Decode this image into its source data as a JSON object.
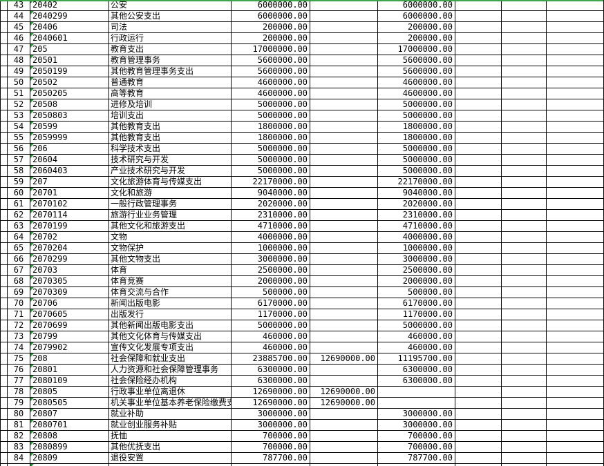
{
  "colors": {
    "gridline": "#000000",
    "background": "#ffffff",
    "text": "#000000",
    "selection_green": "#3da64a",
    "error_indicator_green": "#2f8f3c"
  },
  "table": {
    "rows": [
      {
        "num": "43",
        "code": "20402",
        "desc": "公安",
        "a1": "6000000.00",
        "a2": "",
        "a3": "6000000.00"
      },
      {
        "num": "44",
        "code": "2040299",
        "desc": "其他公安支出",
        "a1": "6000000.00",
        "a2": "",
        "a3": "6000000.00"
      },
      {
        "num": "45",
        "code": "20406",
        "desc": "司法",
        "a1": "200000.00",
        "a2": "",
        "a3": "200000.00"
      },
      {
        "num": "46",
        "code": "2040601",
        "desc": "行政运行",
        "a1": "200000.00",
        "a2": "",
        "a3": "200000.00"
      },
      {
        "num": "47",
        "code": "205",
        "desc": "教育支出",
        "a1": "17000000.00",
        "a2": "",
        "a3": "17000000.00"
      },
      {
        "num": "48",
        "code": "20501",
        "desc": "教育管理事务",
        "a1": "5600000.00",
        "a2": "",
        "a3": "5600000.00"
      },
      {
        "num": "49",
        "code": "2050199",
        "desc": "其他教育管理事务支出",
        "a1": "5600000.00",
        "a2": "",
        "a3": "5600000.00"
      },
      {
        "num": "50",
        "code": "20502",
        "desc": "普通教育",
        "a1": "4600000.00",
        "a2": "",
        "a3": "4600000.00"
      },
      {
        "num": "51",
        "code": "2050205",
        "desc": "高等教育",
        "a1": "4600000.00",
        "a2": "",
        "a3": "4600000.00"
      },
      {
        "num": "52",
        "code": "20508",
        "desc": "进修及培训",
        "a1": "5000000.00",
        "a2": "",
        "a3": "5000000.00"
      },
      {
        "num": "53",
        "code": "2050803",
        "desc": "培训支出",
        "a1": "5000000.00",
        "a2": "",
        "a3": "5000000.00"
      },
      {
        "num": "54",
        "code": "20599",
        "desc": "其他教育支出",
        "a1": "1800000.00",
        "a2": "",
        "a3": "1800000.00"
      },
      {
        "num": "55",
        "code": "2059999",
        "desc": "其他教育支出",
        "a1": "1800000.00",
        "a2": "",
        "a3": "1800000.00"
      },
      {
        "num": "56",
        "code": "206",
        "desc": "科学技术支出",
        "a1": "5000000.00",
        "a2": "",
        "a3": "5000000.00"
      },
      {
        "num": "57",
        "code": "20604",
        "desc": "技术研究与开发",
        "a1": "5000000.00",
        "a2": "",
        "a3": "5000000.00"
      },
      {
        "num": "58",
        "code": "2060403",
        "desc": "产业技术研究与开发",
        "a1": "5000000.00",
        "a2": "",
        "a3": "5000000.00"
      },
      {
        "num": "59",
        "code": "207",
        "desc": "文化旅游体育与传媒支出",
        "a1": "22170000.00",
        "a2": "",
        "a3": "22170000.00"
      },
      {
        "num": "60",
        "code": "20701",
        "desc": "文化和旅游",
        "a1": "9040000.00",
        "a2": "",
        "a3": "9040000.00"
      },
      {
        "num": "61",
        "code": "2070102",
        "desc": "一般行政管理事务",
        "a1": "2020000.00",
        "a2": "",
        "a3": "2020000.00"
      },
      {
        "num": "62",
        "code": "2070114",
        "desc": "旅游行业业务管理",
        "a1": "2310000.00",
        "a2": "",
        "a3": "2310000.00"
      },
      {
        "num": "63",
        "code": "2070199",
        "desc": "其他文化和旅游支出",
        "a1": "4710000.00",
        "a2": "",
        "a3": "4710000.00"
      },
      {
        "num": "64",
        "code": "20702",
        "desc": "文物",
        "a1": "4000000.00",
        "a2": "",
        "a3": "4000000.00"
      },
      {
        "num": "65",
        "code": "2070204",
        "desc": "文物保护",
        "a1": "1000000.00",
        "a2": "",
        "a3": "1000000.00"
      },
      {
        "num": "66",
        "code": "2070299",
        "desc": "其他文物支出",
        "a1": "3000000.00",
        "a2": "",
        "a3": "3000000.00"
      },
      {
        "num": "67",
        "code": "20703",
        "desc": "体育",
        "a1": "2500000.00",
        "a2": "",
        "a3": "2500000.00"
      },
      {
        "num": "68",
        "code": "2070305",
        "desc": "体育竞赛",
        "a1": "2000000.00",
        "a2": "",
        "a3": "2000000.00"
      },
      {
        "num": "69",
        "code": "2070309",
        "desc": "体育交流与合作",
        "a1": "500000.00",
        "a2": "",
        "a3": "500000.00"
      },
      {
        "num": "70",
        "code": "20706",
        "desc": "新闻出版电影",
        "a1": "6170000.00",
        "a2": "",
        "a3": "6170000.00"
      },
      {
        "num": "71",
        "code": "2070605",
        "desc": "出版发行",
        "a1": "1170000.00",
        "a2": "",
        "a3": "1170000.00"
      },
      {
        "num": "72",
        "code": "2070699",
        "desc": "其他新闻出版电影支出",
        "a1": "5000000.00",
        "a2": "",
        "a3": "5000000.00"
      },
      {
        "num": "73",
        "code": "20799",
        "desc": "其他文化体育与传媒支出",
        "a1": "460000.00",
        "a2": "",
        "a3": "460000.00"
      },
      {
        "num": "74",
        "code": "2079902",
        "desc": "宣传文化发展专项支出",
        "a1": "460000.00",
        "a2": "",
        "a3": "460000.00"
      },
      {
        "num": "75",
        "code": "208",
        "desc": "社会保障和就业支出",
        "a1": "23885700.00",
        "a2": "12690000.00",
        "a3": "11195700.00"
      },
      {
        "num": "76",
        "code": "20801",
        "desc": "人力资源和社会保障管理事务",
        "a1": "6300000.00",
        "a2": "",
        "a3": "6300000.00"
      },
      {
        "num": "77",
        "code": "2080109",
        "desc": "社会保险经办机构",
        "a1": "6300000.00",
        "a2": "",
        "a3": "6300000.00"
      },
      {
        "num": "78",
        "code": "20805",
        "desc": "行政事业单位离退休",
        "a1": "12690000.00",
        "a2": "12690000.00",
        "a3": ""
      },
      {
        "num": "79",
        "code": "2080505",
        "desc": "机关事业单位基本养老保险缴费支出",
        "a1": "12690000.00",
        "a2": "12690000.00",
        "a3": ""
      },
      {
        "num": "80",
        "code": "20807",
        "desc": "就业补助",
        "a1": "3000000.00",
        "a2": "",
        "a3": "3000000.00"
      },
      {
        "num": "81",
        "code": "2080701",
        "desc": "就业创业服务补贴",
        "a1": "3000000.00",
        "a2": "",
        "a3": "3000000.00"
      },
      {
        "num": "82",
        "code": "20808",
        "desc": "抚恤",
        "a1": "700000.00",
        "a2": "",
        "a3": "700000.00"
      },
      {
        "num": "83",
        "code": "2080899",
        "desc": "其他优抚支出",
        "a1": "700000.00",
        "a2": "",
        "a3": "700000.00"
      },
      {
        "num": "84",
        "code": "20809",
        "desc": "退役安置",
        "a1": "787700.00",
        "a2": "",
        "a3": "787700.00"
      }
    ],
    "partial_next_row": {
      "has_error_indicator": true
    }
  }
}
